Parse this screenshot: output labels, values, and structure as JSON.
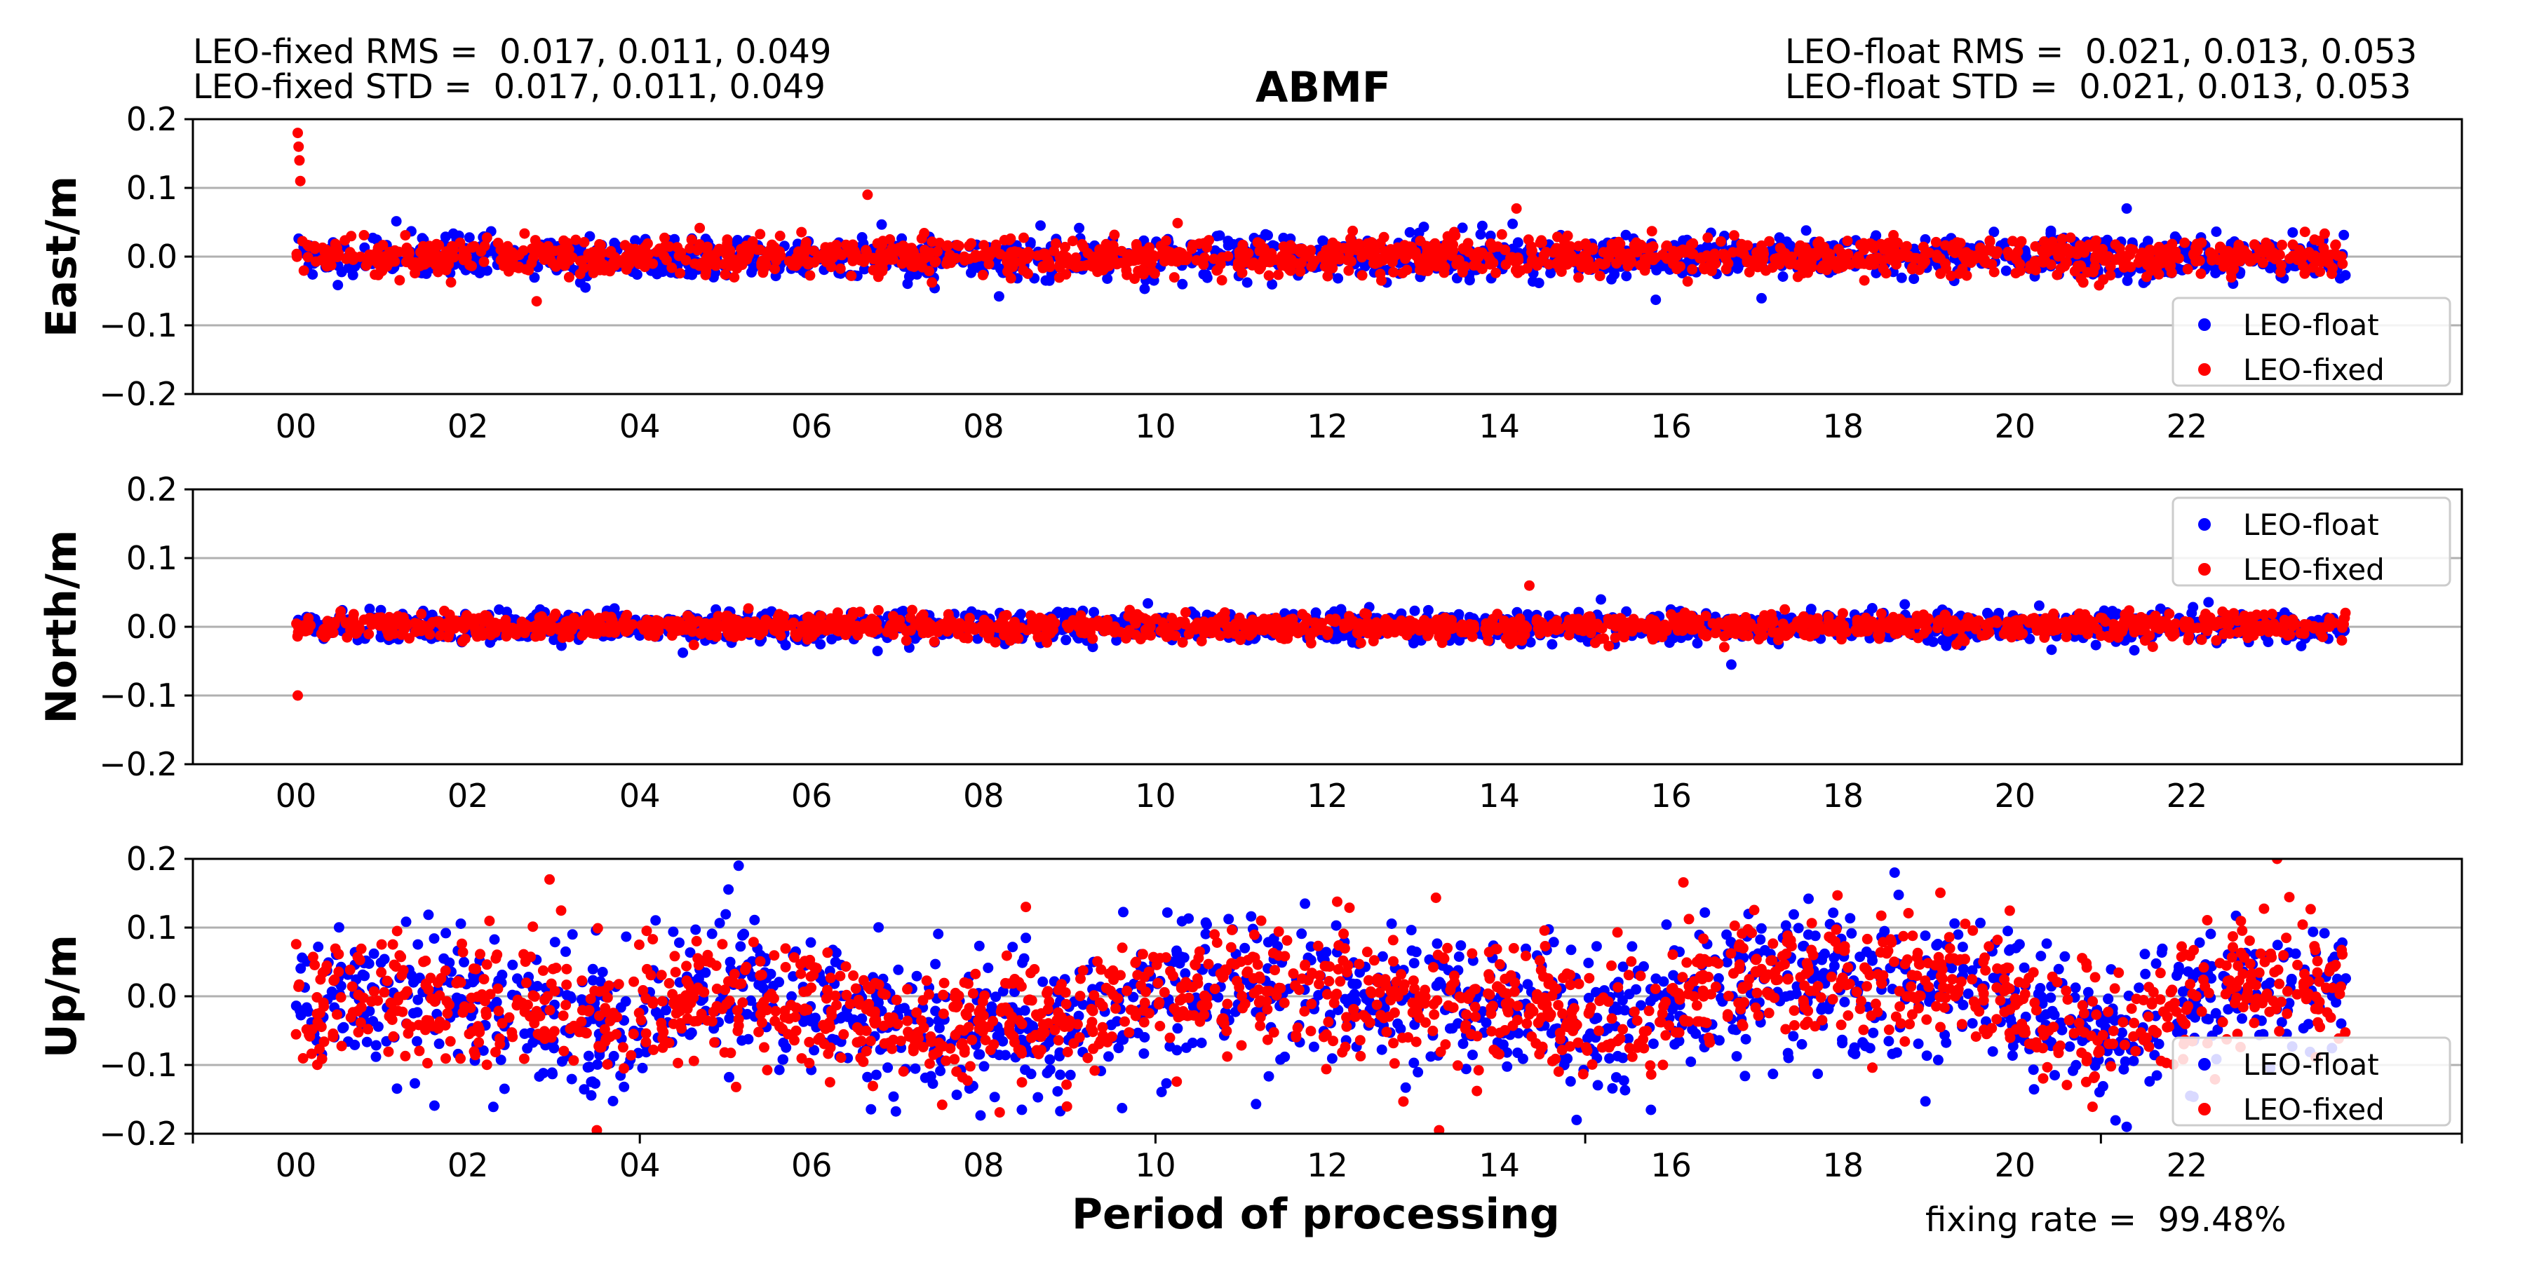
{
  "header": {
    "fixed_rms_label": "LEO-fixed RMS =  0.017, 0.011, 0.049",
    "fixed_std_label": "LEO-fixed STD =  0.017, 0.011, 0.049",
    "float_rms_label": "LEO-float RMS =  0.021, 0.013, 0.053",
    "float_std_label": "LEO-float STD =  0.021, 0.013, 0.053"
  },
  "title": "ABMF",
  "xlabel": "Period of processing",
  "fixing_rate_label": "fixing rate =  99.48%",
  "colors": {
    "float": "#0000ff",
    "fixed": "#ff0000",
    "grid": "#b0b0b0",
    "axis": "#000000"
  },
  "chart_data": [
    {
      "type": "scatter",
      "panel": "east",
      "ylabel": "East/m",
      "ylim": [
        -0.2,
        0.2
      ],
      "yticks": [
        "0.2",
        "0.1",
        "0.0",
        "−0.1",
        "−0.2"
      ],
      "xlim": [
        -1.2,
        25.2
      ],
      "xticks": [
        "00",
        "02",
        "04",
        "06",
        "08",
        "10",
        "12",
        "14",
        "16",
        "18",
        "20",
        "22"
      ],
      "grid": true,
      "legend_position": "lower-right",
      "series": [
        {
          "name": "LEO-float",
          "std": 0.015,
          "offset": 0.0,
          "n": 1400
        },
        {
          "name": "LEO-fixed",
          "std": 0.013,
          "offset": 0.0,
          "n": 1400
        }
      ],
      "noted_points": [
        {
          "series": "LEO-fixed",
          "x": 0.02,
          "y": 0.18
        },
        {
          "series": "LEO-fixed",
          "x": 0.03,
          "y": 0.16
        },
        {
          "series": "LEO-fixed",
          "x": 0.04,
          "y": 0.14
        },
        {
          "series": "LEO-fixed",
          "x": 0.05,
          "y": 0.11
        },
        {
          "series": "LEO-fixed",
          "x": 6.65,
          "y": 0.09
        },
        {
          "series": "LEO-fixed",
          "x": 14.2,
          "y": 0.07
        },
        {
          "series": "LEO-float",
          "x": 21.3,
          "y": 0.07
        },
        {
          "series": "LEO-fixed",
          "x": 2.8,
          "y": -0.065
        }
      ]
    },
    {
      "type": "scatter",
      "panel": "north",
      "ylabel": "North/m",
      "ylim": [
        -0.2,
        0.2
      ],
      "yticks": [
        "0.2",
        "0.1",
        "0.0",
        "−0.1",
        "−0.2"
      ],
      "xlim": [
        -1.2,
        25.2
      ],
      "xticks": [
        "00",
        "02",
        "04",
        "06",
        "08",
        "10",
        "12",
        "14",
        "16",
        "18",
        "20",
        "22"
      ],
      "grid": true,
      "legend_position": "upper-right",
      "series": [
        {
          "name": "LEO-float",
          "std": 0.011,
          "offset": 0.0,
          "n": 1400
        },
        {
          "name": "LEO-fixed",
          "std": 0.009,
          "offset": 0.0,
          "n": 1400
        }
      ],
      "noted_points": [
        {
          "series": "LEO-fixed",
          "x": 0.02,
          "y": -0.1
        },
        {
          "series": "LEO-fixed",
          "x": 14.35,
          "y": 0.06
        },
        {
          "series": "LEO-float",
          "x": 16.7,
          "y": -0.055
        }
      ]
    },
    {
      "type": "scatter",
      "panel": "up",
      "ylabel": "Up/m",
      "ylim": [
        -0.2,
        0.2
      ],
      "yticks": [
        "0.2",
        "0.1",
        "0.0",
        "−0.1",
        "−0.2"
      ],
      "xlim": [
        -1.2,
        25.2
      ],
      "xticks": [
        "00",
        "02",
        "04",
        "06",
        "08",
        "10",
        "12",
        "14",
        "16",
        "18",
        "20",
        "22"
      ],
      "grid": true,
      "legend_position": "lower-right",
      "series": [
        {
          "name": "LEO-float",
          "std": 0.05,
          "offset": 0.0,
          "n": 1500
        },
        {
          "name": "LEO-fixed",
          "std": 0.045,
          "offset": 0.0,
          "n": 1500
        }
      ],
      "trend": [
        [
          0,
          0.0
        ],
        [
          1,
          0.0
        ],
        [
          2,
          -0.005
        ],
        [
          3,
          -0.02
        ],
        [
          3.7,
          -0.05
        ],
        [
          4.2,
          -0.02
        ],
        [
          5,
          0.02
        ],
        [
          5.5,
          0.0
        ],
        [
          6.5,
          -0.03
        ],
        [
          7.5,
          -0.05
        ],
        [
          8.5,
          -0.04
        ],
        [
          9.5,
          -0.02
        ],
        [
          10.5,
          0.02
        ],
        [
          11.5,
          0.02
        ],
        [
          12.5,
          0.0
        ],
        [
          13.5,
          -0.01
        ],
        [
          14.5,
          -0.02
        ],
        [
          15.2,
          -0.04
        ],
        [
          16,
          -0.01
        ],
        [
          17,
          0.03
        ],
        [
          18,
          0.02
        ],
        [
          19,
          0.0
        ],
        [
          19.5,
          0.03
        ],
        [
          20.2,
          -0.03
        ],
        [
          21.2,
          -0.06
        ],
        [
          22,
          0.0
        ],
        [
          22.8,
          0.02
        ],
        [
          23.8,
          0.02
        ]
      ],
      "noted_points": [
        {
          "series": "LEO-fixed",
          "x": 23.05,
          "y": 0.2
        },
        {
          "series": "LEO-float",
          "x": 5.15,
          "y": 0.19
        },
        {
          "series": "LEO-float",
          "x": 18.6,
          "y": 0.18
        },
        {
          "series": "LEO-fixed",
          "x": 2.95,
          "y": 0.17
        },
        {
          "series": "LEO-float",
          "x": 21.3,
          "y": -0.19
        },
        {
          "series": "LEO-fixed",
          "x": 3.5,
          "y": -0.195
        },
        {
          "series": "LEO-fixed",
          "x": 13.3,
          "y": -0.195
        },
        {
          "series": "LEO-float",
          "x": 14.9,
          "y": -0.18
        }
      ]
    }
  ]
}
